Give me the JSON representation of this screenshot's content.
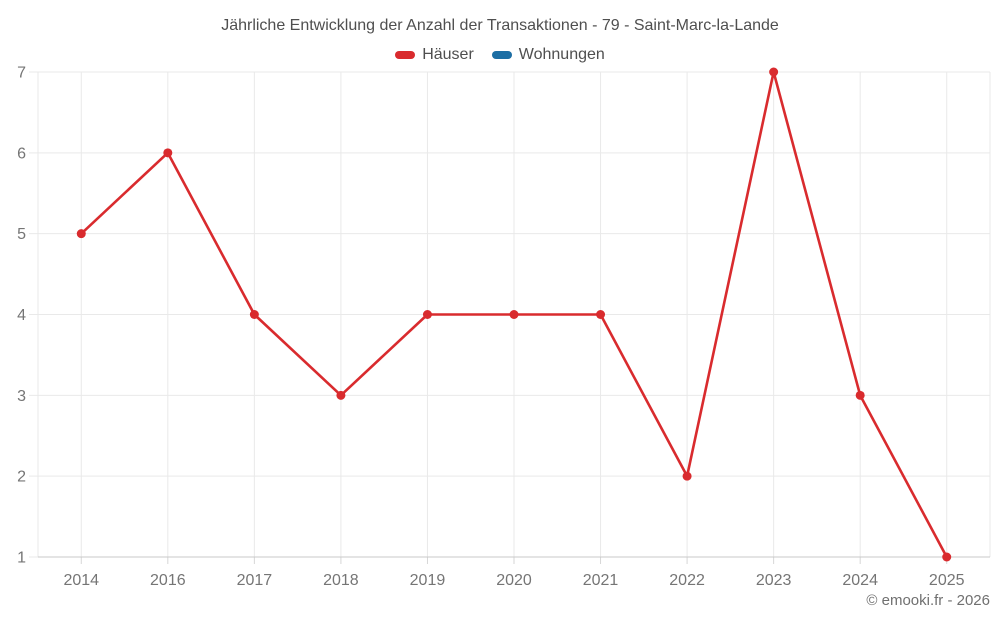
{
  "title": "Jährliche Entwicklung der Anzahl der Transaktionen - 79 - Saint-Marc-la-Lande",
  "legend": {
    "items": [
      {
        "label": "Häuser",
        "color": "#d92b2e"
      },
      {
        "label": "Wohnungen",
        "color": "#1c6ea4"
      }
    ]
  },
  "footer": {
    "credit": "© emooki.fr - 2026"
  },
  "colors": {
    "background": "#ffffff",
    "grid": "#e9e9e9",
    "axis": "#c9c9c9",
    "tick": "#d6d6d6",
    "tick_label": "#757575",
    "title_text": "#4f4f4f",
    "footer_text": "#707070",
    "series_hauser": "#d92b2e",
    "series_wohnungen": "#1c6ea4"
  },
  "chart_data": {
    "type": "line",
    "title": "Jährliche Entwicklung der Anzahl der Transaktionen - 79 - Saint-Marc-la-Lande",
    "categories": [
      "2014",
      "2016",
      "2017",
      "2018",
      "2019",
      "2020",
      "2021",
      "2022",
      "2023",
      "2024",
      "2025"
    ],
    "series": [
      {
        "name": "Häuser",
        "color": "#d92b2e",
        "values": [
          5,
          6,
          4,
          3,
          4,
          4,
          4,
          2,
          7,
          3,
          1
        ]
      },
      {
        "name": "Wohnungen",
        "color": "#1c6ea4",
        "values": []
      }
    ],
    "xlabel": "",
    "ylabel": "",
    "ylim": [
      1,
      7
    ],
    "yticks": [
      1,
      2,
      3,
      4,
      5,
      6,
      7
    ],
    "grid": true,
    "legend_position": "top",
    "marker": "circle"
  }
}
